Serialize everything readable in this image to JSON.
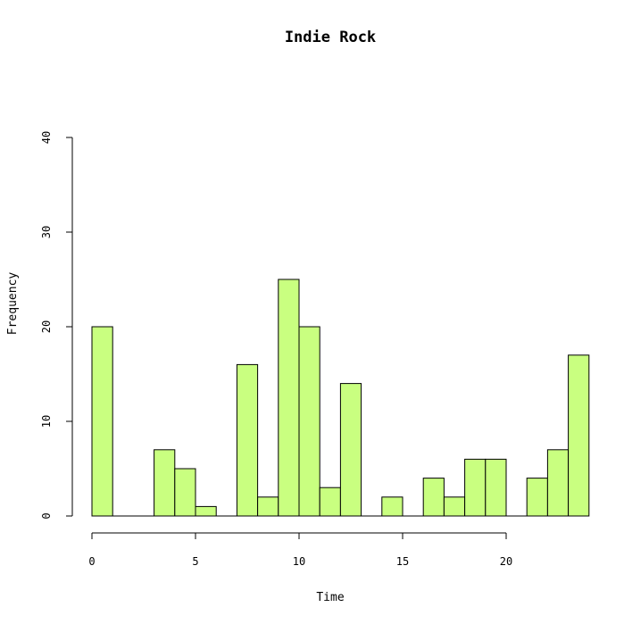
{
  "chart_data": {
    "type": "bar",
    "title": "Indie Rock",
    "xlabel": "Time",
    "ylabel": "Frequency",
    "bin_width": 1,
    "x_bins": [
      0,
      1,
      2,
      3,
      4,
      5,
      6,
      7,
      8,
      9,
      10,
      11,
      12,
      13,
      14,
      15,
      16,
      17,
      18,
      19,
      20,
      21,
      22,
      23
    ],
    "values": [
      20,
      0,
      0,
      7,
      5,
      1,
      0,
      16,
      2,
      25,
      20,
      3,
      14,
      0,
      2,
      0,
      4,
      2,
      6,
      6,
      0,
      4,
      7,
      17
    ],
    "xlim": [
      0,
      24
    ],
    "ylim": [
      0,
      40
    ],
    "xticks": [
      0,
      5,
      10,
      15,
      20
    ],
    "yticks": [
      0,
      10,
      20,
      30,
      40
    ],
    "bar_color": "#c9ff80",
    "grid": false
  }
}
